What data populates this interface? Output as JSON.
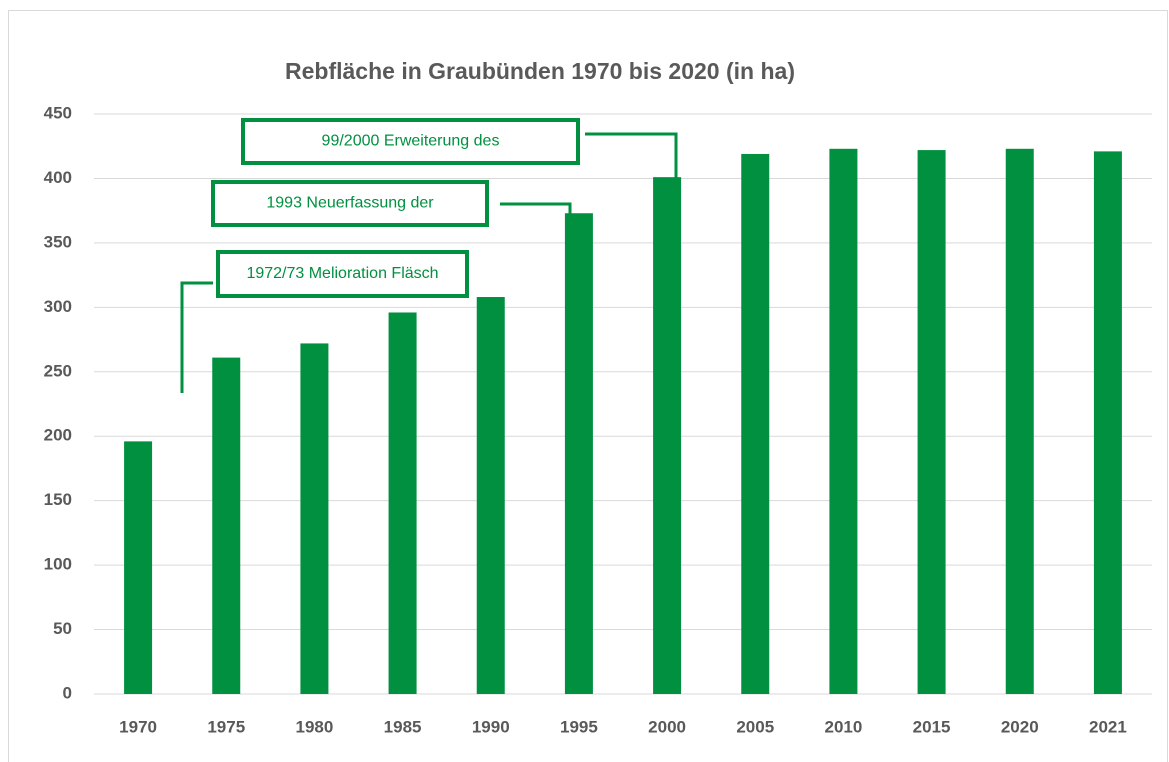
{
  "chart_data": {
    "type": "bar",
    "title": "Rebfläche in Graubünden 1970 bis 2020 (in ha)",
    "categories": [
      "1970",
      "1975",
      "1980",
      "1985",
      "1990",
      "1995",
      "2000",
      "2005",
      "2010",
      "2015",
      "2020",
      "2021"
    ],
    "values": [
      196,
      261,
      272,
      296,
      308,
      373,
      401,
      419,
      423,
      422,
      423,
      421
    ],
    "color": "#009040",
    "ylim": [
      0,
      450
    ],
    "yticks": [
      0,
      50,
      100,
      150,
      200,
      250,
      300,
      350,
      400,
      450
    ],
    "grid": true,
    "annotations": [
      "99/2000 Erweiterung des",
      "1993 Neuerfassung der",
      "1972/73 Melioration Fläsch"
    ]
  }
}
